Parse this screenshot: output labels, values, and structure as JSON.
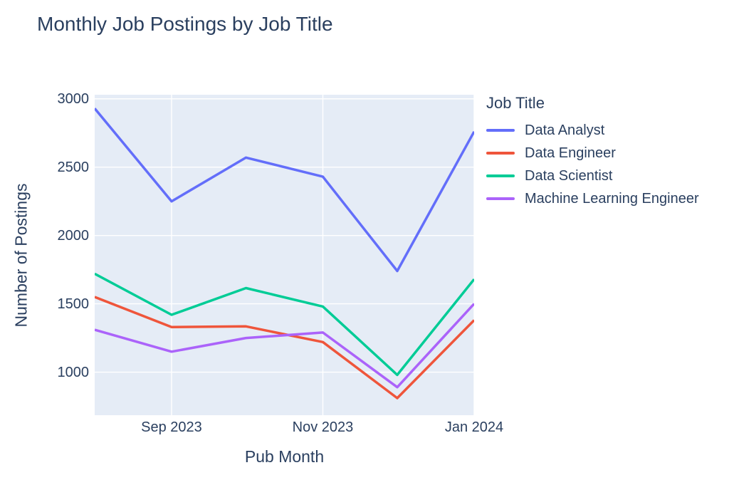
{
  "chart_data": {
    "type": "line",
    "title": "Monthly Job Postings by Job Title",
    "xlabel": "Pub Month",
    "ylabel": "Number of Postings",
    "legend_title": "Job Title",
    "legend_position": "right",
    "categories": [
      "Aug 2023",
      "Sep 2023",
      "Oct 2023",
      "Nov 2023",
      "Dec 2023",
      "Jan 2024"
    ],
    "x_days": [
      0,
      31,
      61,
      92,
      122,
      153
    ],
    "series": [
      {
        "name": "Data Analyst",
        "color": "#636efa",
        "values": [
          2930,
          2250,
          2570,
          2430,
          1740,
          2760
        ]
      },
      {
        "name": "Data Engineer",
        "color": "#ef553b",
        "values": [
          1550,
          1330,
          1335,
          1220,
          810,
          1380
        ]
      },
      {
        "name": "Data Scientist",
        "color": "#00cc96",
        "values": [
          1720,
          1420,
          1615,
          1480,
          980,
          1680
        ]
      },
      {
        "name": "Machine Learning Engineer",
        "color": "#ab63fa",
        "values": [
          1310,
          1150,
          1250,
          1290,
          890,
          1500
        ]
      }
    ],
    "ylim": [
      685,
      3030
    ],
    "yticks": [
      1000,
      1500,
      2000,
      2500,
      3000
    ],
    "xticks": [
      {
        "label": "Sep 2023",
        "day": 31
      },
      {
        "label": "Nov 2023",
        "day": 92
      },
      {
        "label": "Jan 2024",
        "day": 153
      }
    ],
    "grid": true,
    "plot_bg": "#e5ecf6",
    "grid_color": "#ffffff",
    "text_color": "#2a3f5f",
    "line_width": 3.5
  }
}
